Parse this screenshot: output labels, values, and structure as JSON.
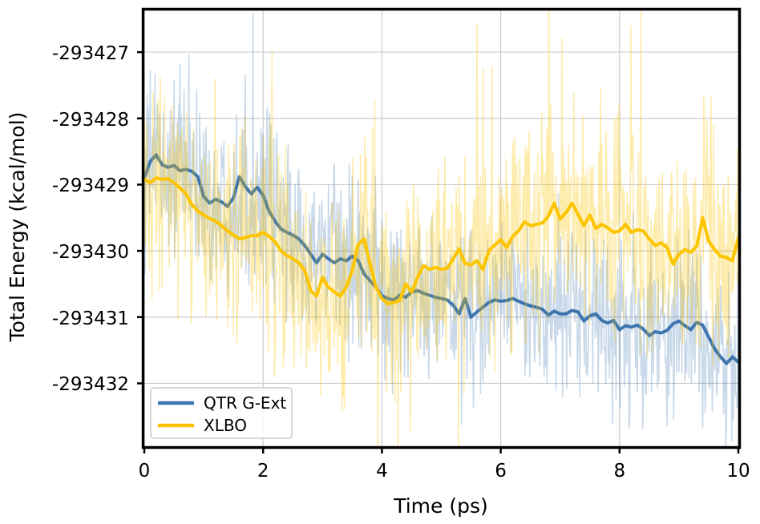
{
  "chart_data": {
    "type": "line",
    "title": "",
    "xlabel": "Time (ps)",
    "ylabel": "Total Energy (kcal/mol)",
    "xlim": [
      0,
      10
    ],
    "ylim": [
      -293432.95,
      -293426.37
    ],
    "xticks": [
      0,
      2,
      4,
      6,
      8,
      10
    ],
    "yticks": [
      -293427,
      -293428,
      -293429,
      -293430,
      -293431,
      -293432
    ],
    "xtick_labels": [
      "0",
      "2",
      "4",
      "6",
      "8",
      "10"
    ],
    "ytick_labels": [
      "-293427",
      "-293428",
      "-293429",
      "-293430",
      "-293431",
      "-293432"
    ],
    "grid": true,
    "grid_color": "#cccccc",
    "border_color": "#000000",
    "legend": {
      "position": "lower left",
      "entries": [
        {
          "label": "QTR G-Ext",
          "color": "#3d76af"
        },
        {
          "label": "XLBO",
          "color": "#fdc400"
        }
      ]
    },
    "x_start": 0,
    "x_step": 0.1,
    "series": [
      {
        "name": "QTR G-Ext",
        "color": "#3d76af",
        "line_width": 4,
        "values": [
          -293428.9,
          -293428.65,
          -293428.55,
          -293428.7,
          -293428.74,
          -293428.71,
          -293428.79,
          -293428.77,
          -293428.8,
          -293428.88,
          -293429.18,
          -293429.28,
          -293429.22,
          -293429.26,
          -293429.33,
          -293429.2,
          -293428.88,
          -293429.03,
          -293429.14,
          -293429.04,
          -293429.16,
          -293429.4,
          -293429.55,
          -293429.67,
          -293429.72,
          -293429.76,
          -293429.82,
          -293429.92,
          -293430.05,
          -293430.18,
          -293430.05,
          -293430.12,
          -293430.18,
          -293430.12,
          -293430.15,
          -293430.08,
          -293430.15,
          -293430.35,
          -293430.45,
          -293430.55,
          -293430.68,
          -293430.72,
          -293430.74,
          -293430.67,
          -293430.7,
          -293430.62,
          -293430.6,
          -293430.64,
          -293430.67,
          -293430.7,
          -293430.72,
          -293430.74,
          -293430.82,
          -293430.95,
          -293430.72,
          -293431.0,
          -293430.92,
          -293430.85,
          -293430.78,
          -293430.74,
          -293430.76,
          -293430.75,
          -293430.72,
          -293430.76,
          -293430.8,
          -293430.83,
          -293430.85,
          -293430.88,
          -293430.97,
          -293430.91,
          -293430.95,
          -293430.95,
          -293430.9,
          -293430.92,
          -293431.06,
          -293430.98,
          -293430.95,
          -293431.05,
          -293431.09,
          -293431.05,
          -293431.19,
          -293431.13,
          -293431.15,
          -293431.12,
          -293431.18,
          -293431.28,
          -293431.22,
          -293431.24,
          -293431.2,
          -293431.1,
          -293431.06,
          -293431.13,
          -293431.19,
          -293431.08,
          -293431.12,
          -293431.3,
          -293431.48,
          -293431.6,
          -293431.7,
          -293431.6,
          -293431.68
        ],
        "raw": {
          "color": "rgba(61,118,175,0.28)",
          "std": 0.78,
          "spike_prob": 0.05,
          "spike_mul": 2.3,
          "seed": 1234,
          "line_width": 1.6
        }
      },
      {
        "name": "XLBO",
        "color": "#fdc400",
        "line_width": 4,
        "values": [
          -293428.92,
          -293428.97,
          -293428.9,
          -293428.92,
          -293428.91,
          -293428.97,
          -293429.05,
          -293429.14,
          -293429.3,
          -293429.4,
          -293429.46,
          -293429.51,
          -293429.55,
          -293429.62,
          -293429.7,
          -293429.76,
          -293429.82,
          -293429.8,
          -293429.77,
          -293429.77,
          -293429.72,
          -293429.78,
          -293429.86,
          -293430.0,
          -293430.07,
          -293430.12,
          -293430.18,
          -293430.3,
          -293430.6,
          -293430.68,
          -293430.4,
          -293430.55,
          -293430.62,
          -293430.68,
          -293430.55,
          -293430.3,
          -293429.9,
          -293429.82,
          -293430.2,
          -293430.55,
          -293430.72,
          -293430.8,
          -293430.78,
          -293430.75,
          -293430.5,
          -293430.62,
          -293430.4,
          -293430.22,
          -293430.28,
          -293430.25,
          -293430.28,
          -293430.26,
          -293430.12,
          -293429.97,
          -293430.19,
          -293430.21,
          -293430.15,
          -293430.28,
          -293430.0,
          -293429.91,
          -293429.83,
          -293429.95,
          -293429.78,
          -293429.7,
          -293429.56,
          -293429.62,
          -293429.6,
          -293429.58,
          -293429.48,
          -293429.28,
          -293429.52,
          -293429.42,
          -293429.28,
          -293429.45,
          -293429.62,
          -293429.46,
          -293429.66,
          -293429.6,
          -293429.65,
          -293429.72,
          -293429.7,
          -293429.6,
          -293429.72,
          -293429.68,
          -293429.7,
          -293429.82,
          -293429.92,
          -293429.88,
          -293429.95,
          -293430.2,
          -293430.05,
          -293429.98,
          -293430.02,
          -293429.93,
          -293429.5,
          -293429.85,
          -293429.98,
          -293430.08,
          -293430.1,
          -293430.15,
          -293429.8
        ],
        "raw": {
          "color": "rgba(253,196,0,0.32)",
          "std": 1.0,
          "spike_prob": 0.055,
          "spike_mul": 2.4,
          "seed": 9876,
          "line_width": 1.6
        }
      }
    ],
    "raw_dt": 0.01
  }
}
